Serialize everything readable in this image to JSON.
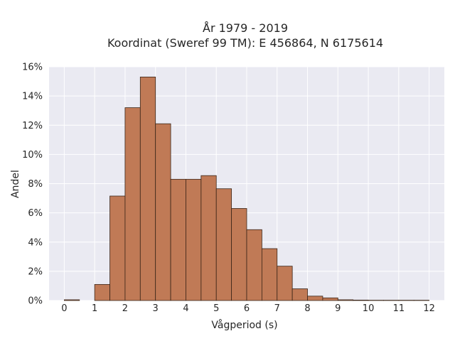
{
  "chart_data": {
    "type": "bar",
    "title_line1": "År 1979 - 2019",
    "title_line2": "Koordinat (Sweref 99 TM): E 456864, N 6175614",
    "xlabel": "Vågperiod (s)",
    "ylabel": "Andel",
    "xlim": [
      -0.5,
      12.5
    ],
    "ylim": [
      0,
      16
    ],
    "x_ticks": [
      0,
      1,
      2,
      3,
      4,
      5,
      6,
      7,
      8,
      9,
      10,
      11,
      12
    ],
    "x_tick_labels": [
      "0",
      "1",
      "2",
      "3",
      "4",
      "5",
      "6",
      "7",
      "8",
      "9",
      "10",
      "11",
      "12"
    ],
    "y_ticks": [
      0,
      2,
      4,
      6,
      8,
      10,
      12,
      14,
      16
    ],
    "y_tick_labels": [
      "0%",
      "2%",
      "4%",
      "6%",
      "8%",
      "10%",
      "12%",
      "14%",
      "16%"
    ],
    "grid": true,
    "background": "#eaeaf2",
    "bar_color": "#c07a56",
    "bar_edge_color": "#3a2518",
    "bins": [
      {
        "x0": 0.0,
        "x1": 0.5,
        "value": 0.05
      },
      {
        "x0": 1.0,
        "x1": 1.5,
        "value": 1.1
      },
      {
        "x0": 1.5,
        "x1": 2.0,
        "value": 7.15
      },
      {
        "x0": 2.0,
        "x1": 2.5,
        "value": 13.2
      },
      {
        "x0": 2.5,
        "x1": 3.0,
        "value": 15.3
      },
      {
        "x0": 3.0,
        "x1": 3.5,
        "value": 12.1
      },
      {
        "x0": 3.5,
        "x1": 4.0,
        "value": 8.3
      },
      {
        "x0": 4.0,
        "x1": 4.5,
        "value": 8.3
      },
      {
        "x0": 4.5,
        "x1": 5.0,
        "value": 8.55
      },
      {
        "x0": 5.0,
        "x1": 5.5,
        "value": 7.65
      },
      {
        "x0": 5.5,
        "x1": 6.0,
        "value": 6.3
      },
      {
        "x0": 6.0,
        "x1": 6.5,
        "value": 4.85
      },
      {
        "x0": 6.5,
        "x1": 7.0,
        "value": 3.55
      },
      {
        "x0": 7.0,
        "x1": 7.5,
        "value": 2.35
      },
      {
        "x0": 7.5,
        "x1": 8.0,
        "value": 0.8
      },
      {
        "x0": 8.0,
        "x1": 8.5,
        "value": 0.3
      },
      {
        "x0": 8.5,
        "x1": 9.0,
        "value": 0.18
      },
      {
        "x0": 9.0,
        "x1": 9.5,
        "value": 0.05
      },
      {
        "x0": 9.5,
        "x1": 10.0,
        "value": 0.03
      },
      {
        "x0": 10.0,
        "x1": 10.5,
        "value": 0.02
      },
      {
        "x0": 10.5,
        "x1": 11.0,
        "value": 0.02
      },
      {
        "x0": 11.0,
        "x1": 11.5,
        "value": 0.02
      },
      {
        "x0": 11.5,
        "x1": 12.0,
        "value": 0.02
      }
    ]
  }
}
